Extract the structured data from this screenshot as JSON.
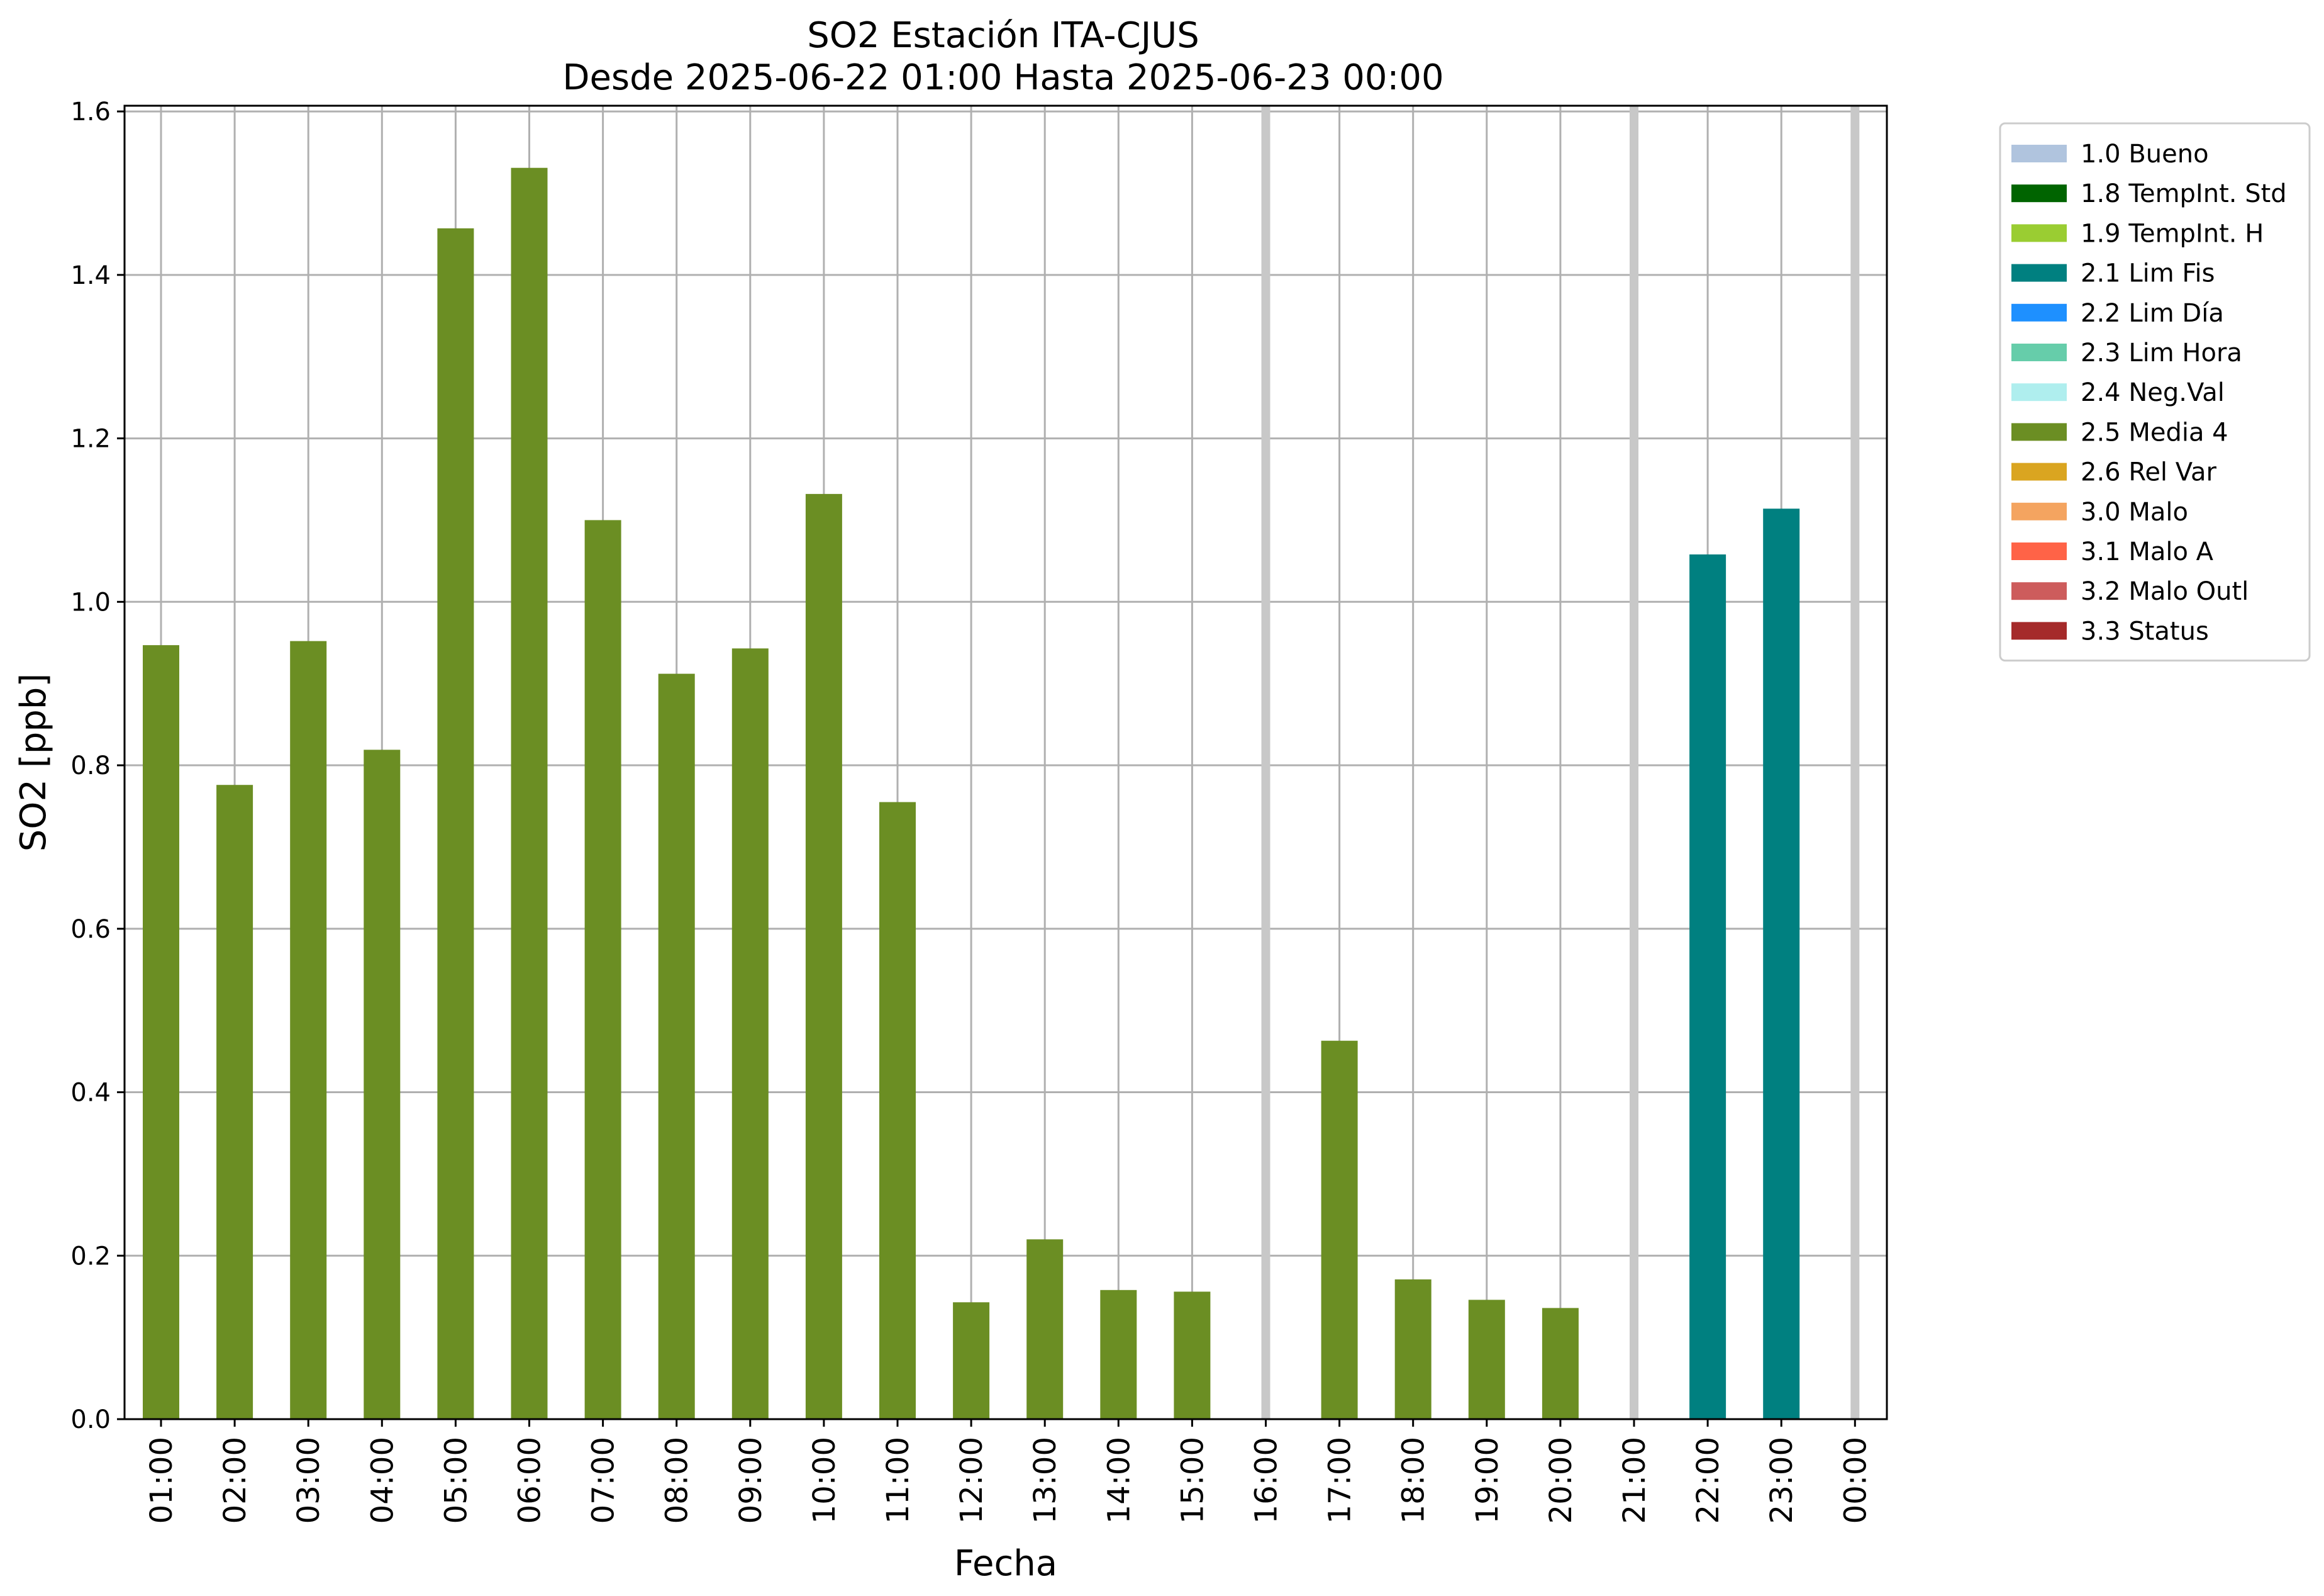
{
  "chart_data": {
    "type": "bar",
    "title": "SO2 Estación ITA-CJUS",
    "subtitle": "Desde 2025-06-22 01:00 Hasta 2025-06-23 00:00",
    "xlabel": "Fecha",
    "ylabel": "SO2 [ppb]",
    "ylim": [
      0,
      1.607
    ],
    "yticks": [
      "0.0",
      "0.2",
      "0.4",
      "0.6",
      "0.8",
      "1.0",
      "1.2",
      "1.4",
      "1.6"
    ],
    "grid": true,
    "legend_position": "outside-right-top",
    "categories": [
      "01:00",
      "02:00",
      "03:00",
      "04:00",
      "05:00",
      "06:00",
      "07:00",
      "08:00",
      "09:00",
      "10:00",
      "11:00",
      "12:00",
      "13:00",
      "14:00",
      "15:00",
      "16:00",
      "17:00",
      "18:00",
      "19:00",
      "20:00",
      "21:00",
      "22:00",
      "23:00",
      "00:00"
    ],
    "values": [
      0.947,
      0.776,
      0.952,
      0.819,
      1.457,
      1.531,
      1.1,
      0.912,
      0.943,
      1.132,
      0.755,
      0.143,
      0.22,
      0.158,
      0.156,
      null,
      0.463,
      0.171,
      0.146,
      0.136,
      null,
      1.058,
      1.114,
      null
    ],
    "flags": [
      "2.5 Media 4",
      "2.5 Media 4",
      "2.5 Media 4",
      "2.5 Media 4",
      "2.5 Media 4",
      "2.5 Media 4",
      "2.5 Media 4",
      "2.5 Media 4",
      "2.5 Media 4",
      "2.5 Media 4",
      "2.5 Media 4",
      "2.5 Media 4",
      "2.5 Media 4",
      "2.5 Media 4",
      "2.5 Media 4",
      null,
      "2.5 Media 4",
      "2.5 Media 4",
      "2.5 Media 4",
      "2.5 Media 4",
      null,
      "2.1 Lim Fis",
      "2.1 Lim Fis",
      null
    ],
    "missing_marker_color": "#c8c8c8",
    "legend": [
      {
        "label": "1.0 Bueno",
        "color": "#b0c4de"
      },
      {
        "label": "1.8 TempInt. Std",
        "color": "#006400"
      },
      {
        "label": "1.9 TempInt. H",
        "color": "#9acd32"
      },
      {
        "label": "2.1 Lim Fis",
        "color": "#008080"
      },
      {
        "label": "2.2 Lim Día",
        "color": "#1e90ff"
      },
      {
        "label": "2.3 Lim Hora",
        "color": "#66cdaa"
      },
      {
        "label": "2.4 Neg.Val",
        "color": "#afeeee"
      },
      {
        "label": "2.5 Media 4",
        "color": "#6b8e23"
      },
      {
        "label": "2.6 Rel Var",
        "color": "#daa520"
      },
      {
        "label": "3.0 Malo",
        "color": "#f4a460"
      },
      {
        "label": "3.1 Malo A",
        "color": "#ff6347"
      },
      {
        "label": "3.2 Malo Outl",
        "color": "#cd5c5c"
      },
      {
        "label": "3.3 Status",
        "color": "#a52a2a"
      }
    ]
  }
}
